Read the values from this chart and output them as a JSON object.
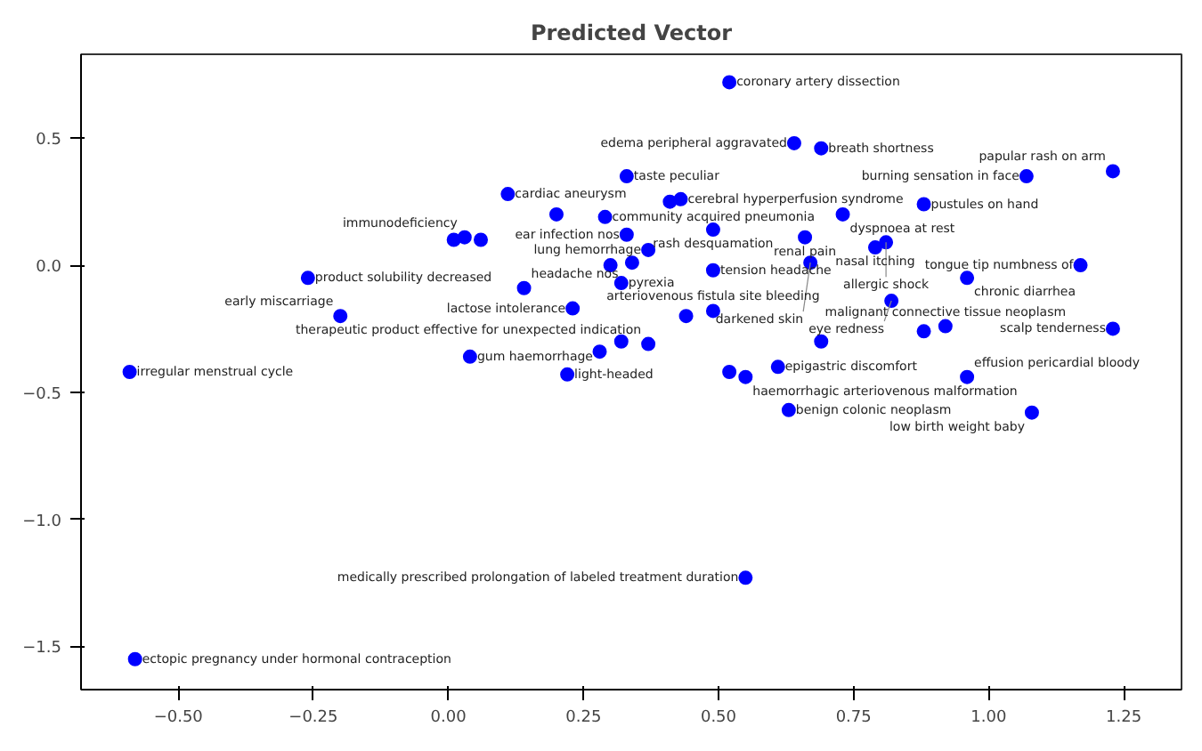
{
  "chart_data": {
    "type": "scatter",
    "title": "Predicted Vector",
    "marker": "circle",
    "grid": false,
    "xlim": [
      -0.68,
      1.357
    ],
    "ylim": [
      -1.67,
      0.83
    ],
    "xticks": [
      {
        "value": -0.5,
        "label": "−0.50"
      },
      {
        "value": -0.25,
        "label": "−0.25"
      },
      {
        "value": 0,
        "label": "0.00"
      },
      {
        "value": 0.25,
        "label": "0.25"
      },
      {
        "value": 0.5,
        "label": "0.50"
      },
      {
        "value": 0.75,
        "label": "0.75"
      },
      {
        "value": 1,
        "label": "1.00"
      },
      {
        "value": 1.25,
        "label": "1.25"
      }
    ],
    "yticks": [
      {
        "value": -1.5,
        "label": "−1.5"
      },
      {
        "value": -1,
        "label": "−1.0"
      },
      {
        "value": -0.5,
        "label": "−0.5"
      },
      {
        "value": 0,
        "label": "0.0"
      },
      {
        "value": 0.5,
        "label": "0.5"
      }
    ],
    "series": [
      {
        "color": "#0000ff",
        "x": [
          0.52,
          0.64,
          0.69,
          0.33,
          0.11,
          1.07,
          1.23,
          0.43,
          0.41,
          0.29,
          0.2,
          0.73,
          0.88,
          0.49,
          0.33,
          0.66,
          0.81,
          0.79,
          0.37,
          0.67,
          0.49,
          0.3,
          0.34,
          1.17,
          0.96,
          0.32,
          0.14,
          0.01,
          0.03,
          0.06,
          -0.26,
          -0.2,
          0.82,
          0.49,
          0.23,
          0.44,
          0.92,
          1.23,
          0.37,
          0.04,
          -0.59,
          0.22,
          0.52,
          0.61,
          0.55,
          0.96,
          0.63,
          1.08,
          0.55,
          -0.58,
          0.28,
          0.32,
          0.69,
          0.88
        ],
        "values": [
          0.72,
          0.48,
          0.46,
          0.35,
          0.28,
          0.35,
          0.37,
          0.26,
          0.25,
          0.19,
          0.2,
          0.2,
          0.24,
          0.14,
          0.12,
          0.11,
          0.09,
          0.07,
          0.06,
          0.01,
          -0.02,
          0.0,
          0.01,
          0.0,
          -0.05,
          -0.07,
          -0.09,
          0.1,
          0.11,
          0.1,
          -0.05,
          -0.2,
          -0.14,
          -0.18,
          -0.17,
          -0.2,
          -0.24,
          -0.25,
          -0.31,
          -0.36,
          -0.42,
          -0.43,
          -0.42,
          -0.4,
          -0.44,
          -0.44,
          -0.57,
          -0.58,
          -1.23,
          -1.55,
          -0.34,
          -0.3,
          -0.3,
          -0.26
        ]
      }
    ],
    "annotations": [
      {
        "text": "coronary artery dissection",
        "x": 0.52,
        "y": 0.72
      },
      {
        "text": "edema peripheral aggravated",
        "x": 0.64,
        "y": 0.48
      },
      {
        "text": "breath shortness",
        "x": 0.69,
        "y": 0.46
      },
      {
        "text": "taste peculiar",
        "x": 0.33,
        "y": 0.35
      },
      {
        "text": "cardiac aneurysm",
        "x": 0.11,
        "y": 0.28
      },
      {
        "text": "burning sensation in face",
        "x": 1.07,
        "y": 0.35
      },
      {
        "text": "papular rash on arm",
        "x": 1.23,
        "y": 0.37
      },
      {
        "text": "cerebral hyperperfusion syndrome",
        "x": 0.43,
        "y": 0.26
      },
      {
        "text": "community acquired pneumonia",
        "x": 0.29,
        "y": 0.19
      },
      {
        "text": "dyspnoea at rest",
        "x": 0.73,
        "y": 0.2
      },
      {
        "text": "pustules on hand",
        "x": 0.88,
        "y": 0.24
      },
      {
        "text": "rash desquamation",
        "x": 0.49,
        "y": 0.14
      },
      {
        "text": "ear infection nos",
        "x": 0.33,
        "y": 0.12
      },
      {
        "text": "renal pain",
        "x": 0.66,
        "y": 0.11
      },
      {
        "text": "allergic shock",
        "x": 0.81,
        "y": 0.09
      },
      {
        "text": "nasal itching",
        "x": 0.79,
        "y": 0.07
      },
      {
        "text": "lung hemorrhage",
        "x": 0.37,
        "y": 0.06
      },
      {
        "text": "darkened skin",
        "x": 0.67,
        "y": 0.01
      },
      {
        "text": "tension headache",
        "x": 0.49,
        "y": -0.02
      },
      {
        "text": "tongue tip numbness of",
        "x": 1.17,
        "y": 0.0
      },
      {
        "text": "chronic diarrhea",
        "x": 0.96,
        "y": -0.05
      },
      {
        "text": "pyrexia",
        "x": 0.32,
        "y": -0.07
      },
      {
        "text": "headache nos",
        "x": 0.14,
        "y": -0.09
      },
      {
        "text": "immunodeficiency",
        "x": 0.03,
        "y": 0.11
      },
      {
        "text": "product solubility decreased",
        "x": -0.26,
        "y": -0.05
      },
      {
        "text": "early miscarriage",
        "x": -0.2,
        "y": -0.2
      },
      {
        "text": "eye redness",
        "x": 0.82,
        "y": -0.14
      },
      {
        "text": "arteriovenous fistula site bleeding",
        "x": 0.49,
        "y": -0.18
      },
      {
        "text": "lactose intolerance",
        "x": 0.23,
        "y": -0.17
      },
      {
        "text": "malignant connective tissue neoplasm",
        "x": 0.92,
        "y": -0.24
      },
      {
        "text": "scalp tenderness",
        "x": 1.23,
        "y": -0.25
      },
      {
        "text": "therapeutic product effective for unexpected indication",
        "x": 0.37,
        "y": -0.31
      },
      {
        "text": "gum haemorrhage",
        "x": 0.04,
        "y": -0.36
      },
      {
        "text": "irregular menstrual cycle",
        "x": -0.59,
        "y": -0.42
      },
      {
        "text": "light-headed",
        "x": 0.22,
        "y": -0.43
      },
      {
        "text": "epigastric discomfort",
        "x": 0.61,
        "y": -0.4
      },
      {
        "text": "haemorrhagic arteriovenous malformation",
        "x": 0.55,
        "y": -0.44
      },
      {
        "text": "effusion pericardial bloody",
        "x": 0.96,
        "y": -0.44
      },
      {
        "text": "benign colonic neoplasm",
        "x": 0.63,
        "y": -0.57
      },
      {
        "text": "low birth weight baby",
        "x": 1.08,
        "y": -0.58
      },
      {
        "text": "medically prescribed prolongation of labeled treatment duration",
        "x": 0.55,
        "y": -1.23
      },
      {
        "text": "ectopic pregnancy under hormonal contraception",
        "x": -0.58,
        "y": -1.55
      }
    ]
  }
}
